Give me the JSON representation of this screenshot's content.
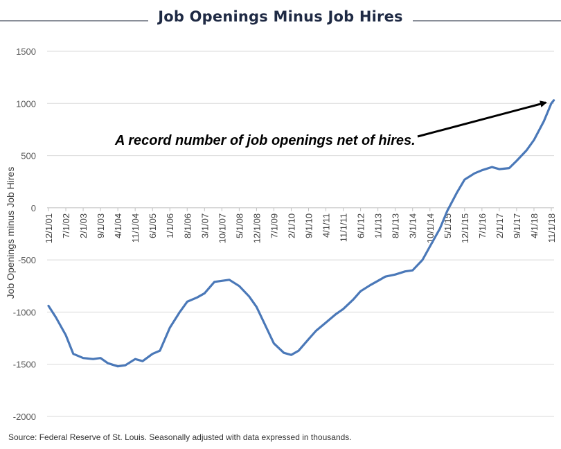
{
  "title": "Job Openings Minus Job Hires",
  "source": "Source: Federal Reserve of St. Louis. Seasonally adjusted with data expressed in thousands.",
  "colors": {
    "line": "#4a78b8",
    "grid": "#d9d9d9",
    "title": "#1f2a44"
  },
  "chart_data": {
    "type": "line",
    "title": "Job Openings Minus Job Hires",
    "xlabel": "",
    "ylabel": "Job Openings minus Job Hires",
    "ylim": [
      -2000,
      1500
    ],
    "yticks": [
      1500,
      1000,
      500,
      0,
      -500,
      -1000,
      -1500,
      -2000
    ],
    "x_ticks": [
      "12/1/01",
      "7/1/02",
      "2/1/03",
      "9/1/03",
      "4/1/04",
      "11/1/04",
      "6/1/05",
      "1/1/06",
      "8/1/06",
      "3/1/07",
      "10/1/07",
      "5/1/08",
      "12/1/08",
      "7/1/09",
      "2/1/10",
      "9/1/10",
      "4/1/11",
      "11/1/11",
      "6/1/12",
      "1/1/13",
      "8/1/13",
      "3/1/14",
      "10/1/14",
      "5/1/15",
      "12/1/15",
      "7/1/16",
      "2/1/17",
      "9/1/17",
      "4/1/18",
      "11/1/18"
    ],
    "grid": "horizontal",
    "annotation": "A record number of job openings net of hires.",
    "series": [
      {
        "name": "",
        "points": [
          [
            "12/1/01",
            -940
          ],
          [
            "3/1/02",
            -1050
          ],
          [
            "7/1/02",
            -1220
          ],
          [
            "10/1/02",
            -1400
          ],
          [
            "2/1/03",
            -1440
          ],
          [
            "6/1/03",
            -1450
          ],
          [
            "9/1/03",
            -1440
          ],
          [
            "12/1/03",
            -1490
          ],
          [
            "4/1/04",
            -1520
          ],
          [
            "7/1/04",
            -1510
          ],
          [
            "11/1/04",
            -1450
          ],
          [
            "2/1/05",
            -1470
          ],
          [
            "6/1/05",
            -1400
          ],
          [
            "9/1/05",
            -1370
          ],
          [
            "1/1/06",
            -1150
          ],
          [
            "5/1/06",
            -1000
          ],
          [
            "8/1/06",
            -900
          ],
          [
            "12/1/06",
            -860
          ],
          [
            "3/1/07",
            -820
          ],
          [
            "7/1/07",
            -710
          ],
          [
            "10/1/07",
            -700
          ],
          [
            "1/1/08",
            -690
          ],
          [
            "5/1/08",
            -750
          ],
          [
            "9/1/08",
            -850
          ],
          [
            "12/1/08",
            -950
          ],
          [
            "4/1/09",
            -1150
          ],
          [
            "7/1/09",
            -1300
          ],
          [
            "11/1/09",
            -1390
          ],
          [
            "2/1/10",
            -1410
          ],
          [
            "5/1/10",
            -1370
          ],
          [
            "9/1/10",
            -1260
          ],
          [
            "12/1/10",
            -1180
          ],
          [
            "4/1/11",
            -1100
          ],
          [
            "8/1/11",
            -1020
          ],
          [
            "11/1/11",
            -970
          ],
          [
            "3/1/12",
            -880
          ],
          [
            "6/1/12",
            -800
          ],
          [
            "10/1/12",
            -740
          ],
          [
            "1/1/13",
            -700
          ],
          [
            "4/1/13",
            -660
          ],
          [
            "8/1/13",
            -640
          ],
          [
            "12/1/13",
            -610
          ],
          [
            "3/1/14",
            -600
          ],
          [
            "7/1/14",
            -500
          ],
          [
            "10/1/14",
            -370
          ],
          [
            "2/1/15",
            -200
          ],
          [
            "5/1/15",
            -30
          ],
          [
            "9/1/15",
            150
          ],
          [
            "12/1/15",
            270
          ],
          [
            "4/1/16",
            330
          ],
          [
            "7/1/16",
            360
          ],
          [
            "11/1/16",
            390
          ],
          [
            "2/1/17",
            370
          ],
          [
            "6/1/17",
            380
          ],
          [
            "9/1/17",
            450
          ],
          [
            "1/1/18",
            550
          ],
          [
            "4/1/18",
            650
          ],
          [
            "8/1/18",
            830
          ],
          [
            "11/1/18",
            1000
          ],
          [
            "12/1/18",
            1030
          ]
        ]
      }
    ]
  }
}
